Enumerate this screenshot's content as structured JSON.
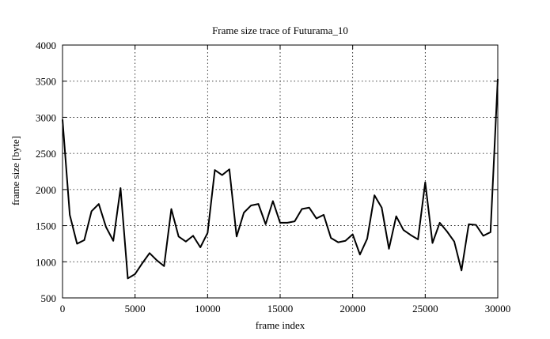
{
  "chart_data": {
    "type": "line",
    "title": "Frame size trace of Futurama_10",
    "xlabel": "frame index",
    "ylabel": "frame size [byte]",
    "xlim": [
      0,
      30000
    ],
    "ylim": [
      500,
      4000
    ],
    "xticks": [
      0,
      5000,
      10000,
      15000,
      20000,
      25000,
      30000
    ],
    "yticks": [
      500,
      1000,
      1500,
      2000,
      2500,
      3000,
      3500,
      4000
    ],
    "grid": true,
    "line_color": "#000000",
    "series": [
      {
        "x": [
          0,
          500,
          1000,
          1500,
          2000,
          2500,
          3000,
          3500,
          4000,
          4500,
          5000,
          5500,
          6000,
          6500,
          7000,
          7500,
          8000,
          8500,
          9000,
          9500,
          10000,
          10500,
          11000,
          11500,
          12000,
          12500,
          13000,
          13500,
          14000,
          14500,
          15000,
          15500,
          16000,
          16500,
          17000,
          17500,
          18000,
          18500,
          19000,
          19500,
          20000,
          20500,
          21000,
          21500,
          22000,
          22500,
          23000,
          23500,
          24000,
          24500,
          25000,
          25500,
          26000,
          26500,
          27000,
          27500,
          28000,
          28500,
          29000,
          29500,
          30000
        ],
        "y": [
          2970,
          1650,
          1250,
          1300,
          1700,
          1800,
          1480,
          1290,
          2020,
          770,
          830,
          980,
          1120,
          1020,
          940,
          1730,
          1350,
          1280,
          1360,
          1200,
          1400,
          2270,
          2200,
          2280,
          1350,
          1680,
          1780,
          1800,
          1520,
          1840,
          1540,
          1540,
          1560,
          1730,
          1750,
          1600,
          1650,
          1330,
          1270,
          1290,
          1380,
          1100,
          1320,
          1920,
          1750,
          1180,
          1630,
          1440,
          1370,
          1310,
          2100,
          1260,
          1540,
          1420,
          1280,
          880,
          1520,
          1510,
          1360,
          1410,
          3530
        ]
      }
    ]
  }
}
